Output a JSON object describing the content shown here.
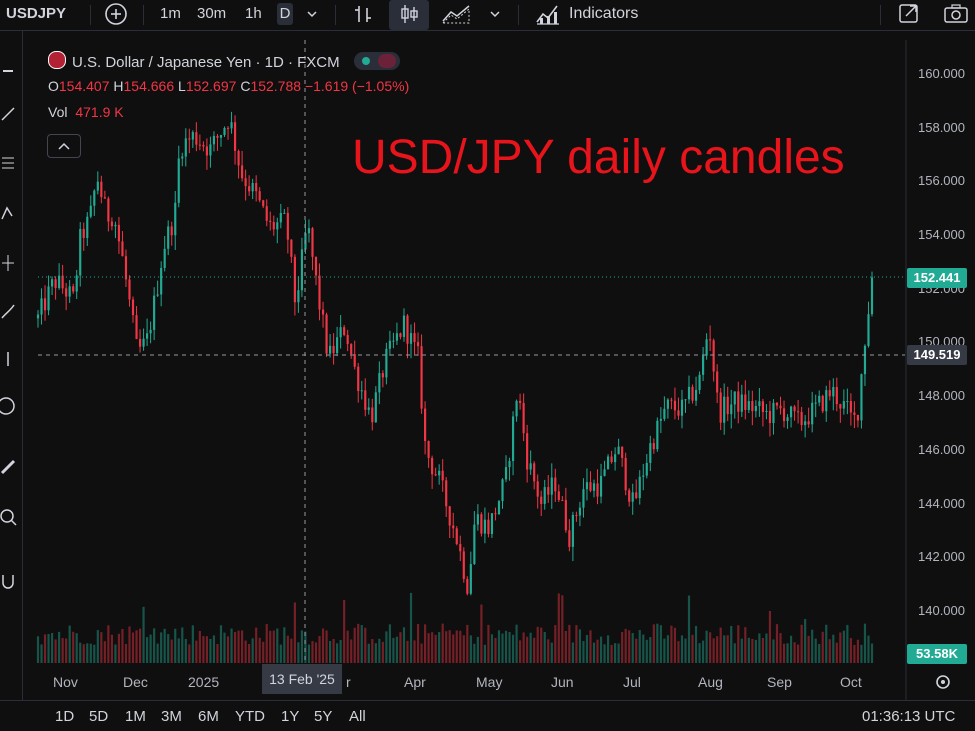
{
  "toolbar": {
    "symbol": "USDJPY",
    "timeframes": [
      "1m",
      "30m",
      "1h",
      "D"
    ],
    "indicators_label": "Indicators"
  },
  "legend": {
    "title": "U.S. Dollar / Japanese Yen · 1D · FXCM",
    "o_label": "O",
    "o_value": "154.407",
    "h_label": "H",
    "h_value": "154.666",
    "l_label": "L",
    "l_value": "152.697",
    "c_label": "C",
    "c_value": "152.788",
    "change": "−1.619 (−1.05%)",
    "vol_label": "Vol",
    "vol_value": "471.9 K"
  },
  "annotation": "USD/JPY daily candles",
  "price_labels": {
    "last_price": "152.441",
    "crosshair_price": "149.519",
    "volume": "53.58K"
  },
  "crosshair_date": "13 Feb '25",
  "bottom": {
    "ranges": [
      "1D",
      "5D",
      "1M",
      "3M",
      "6M",
      "YTD",
      "1Y",
      "5Y",
      "All"
    ],
    "clock": "01:36:13 UTC"
  },
  "colors": {
    "up": "#22ab94",
    "down": "#f23645",
    "background": "#0f0f0f",
    "annotation": "#e8141b"
  },
  "chart_data": {
    "type": "candlestick",
    "title": "U.S. Dollar / Japanese Yen · 1D · FXCM",
    "y_ticks": [
      "160.000",
      "158.000",
      "156.000",
      "154.000",
      "152.000",
      "150.000",
      "148.000",
      "146.000",
      "144.000",
      "142.000",
      "140.000"
    ],
    "ylim": [
      139.0,
      160.5
    ],
    "x_ticks": [
      "Nov",
      "Dec",
      "2025",
      "r",
      "Apr",
      "May",
      "Jun",
      "Jul",
      "Aug",
      "Sep",
      "Oct"
    ],
    "close_path": [
      {
        "date": "2024-10-21",
        "close": 150.9
      },
      {
        "date": "2024-10-28",
        "close": 152.3
      },
      {
        "date": "2024-11-01",
        "close": 152.0
      },
      {
        "date": "2024-11-05",
        "close": 151.6
      },
      {
        "date": "2024-11-08",
        "close": 153.9
      },
      {
        "date": "2024-11-12",
        "close": 154.6
      },
      {
        "date": "2024-11-15",
        "close": 156.2
      },
      {
        "date": "2024-11-19",
        "close": 154.7
      },
      {
        "date": "2024-11-22",
        "close": 154.8
      },
      {
        "date": "2024-11-26",
        "close": 153.0
      },
      {
        "date": "2024-12-02",
        "close": 149.6
      },
      {
        "date": "2024-12-06",
        "close": 150.0
      },
      {
        "date": "2024-12-10",
        "close": 151.8
      },
      {
        "date": "2024-12-13",
        "close": 153.5
      },
      {
        "date": "2024-12-18",
        "close": 154.8
      },
      {
        "date": "2024-12-20",
        "close": 157.3
      },
      {
        "date": "2024-12-26",
        "close": 157.7
      },
      {
        "date": "2025-01-02",
        "close": 157.2
      },
      {
        "date": "2025-01-10",
        "close": 158.4
      },
      {
        "date": "2025-01-15",
        "close": 156.3
      },
      {
        "date": "2025-01-21",
        "close": 155.5
      },
      {
        "date": "2025-01-27",
        "close": 154.3
      },
      {
        "date": "2025-02-03",
        "close": 154.5
      },
      {
        "date": "2025-02-07",
        "close": 151.4
      },
      {
        "date": "2025-02-12",
        "close": 154.4
      },
      {
        "date": "2025-02-17",
        "close": 151.5
      },
      {
        "date": "2025-02-21",
        "close": 149.4
      },
      {
        "date": "2025-02-28",
        "close": 150.6
      },
      {
        "date": "2025-03-04",
        "close": 149.0
      },
      {
        "date": "2025-03-11",
        "close": 147.2
      },
      {
        "date": "2025-03-17",
        "close": 149.3
      },
      {
        "date": "2025-03-25",
        "close": 150.7
      },
      {
        "date": "2025-03-31",
        "close": 149.4
      },
      {
        "date": "2025-04-03",
        "close": 146.0
      },
      {
        "date": "2025-04-09",
        "close": 144.8
      },
      {
        "date": "2025-04-16",
        "close": 142.8
      },
      {
        "date": "2025-04-21",
        "close": 140.9
      },
      {
        "date": "2025-04-24",
        "close": 143.5
      },
      {
        "date": "2025-04-30",
        "close": 143.1
      },
      {
        "date": "2025-05-07",
        "close": 144.9
      },
      {
        "date": "2025-05-12",
        "close": 148.3
      },
      {
        "date": "2025-05-16",
        "close": 145.7
      },
      {
        "date": "2025-05-22",
        "close": 144.0
      },
      {
        "date": "2025-05-28",
        "close": 144.8
      },
      {
        "date": "2025-06-03",
        "close": 142.8
      },
      {
        "date": "2025-06-09",
        "close": 144.6
      },
      {
        "date": "2025-06-16",
        "close": 144.7
      },
      {
        "date": "2025-06-23",
        "close": 146.1
      },
      {
        "date": "2025-06-30",
        "close": 143.9
      },
      {
        "date": "2025-07-07",
        "close": 146.1
      },
      {
        "date": "2025-07-14",
        "close": 147.6
      },
      {
        "date": "2025-07-21",
        "close": 147.5
      },
      {
        "date": "2025-07-28",
        "close": 148.6
      },
      {
        "date": "2025-08-01",
        "close": 150.7
      },
      {
        "date": "2025-08-05",
        "close": 147.4
      },
      {
        "date": "2025-08-12",
        "close": 147.8
      },
      {
        "date": "2025-08-19",
        "close": 147.6
      },
      {
        "date": "2025-08-26",
        "close": 147.3
      },
      {
        "date": "2025-09-01",
        "close": 147.5
      },
      {
        "date": "2025-09-08",
        "close": 147.0
      },
      {
        "date": "2025-09-15",
        "close": 147.5
      },
      {
        "date": "2025-09-22",
        "close": 148.2
      },
      {
        "date": "2025-09-29",
        "close": 147.4
      },
      {
        "date": "2025-10-01",
        "close": 147.0
      },
      {
        "date": "2025-10-03",
        "close": 147.5
      },
      {
        "date": "2025-10-06",
        "close": 150.1
      },
      {
        "date": "2025-10-09",
        "close": 152.4
      }
    ]
  }
}
